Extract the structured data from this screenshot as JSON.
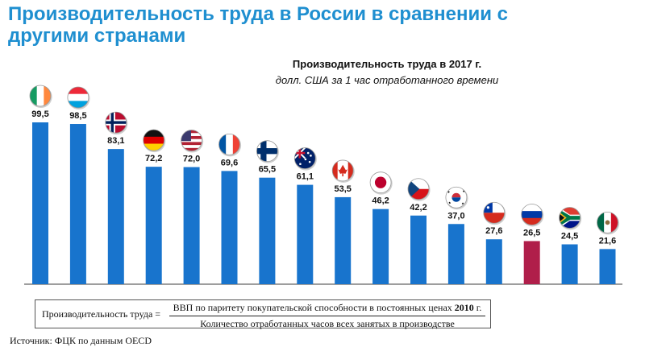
{
  "page": {
    "title": "Производительность труда в России в сравнении с другими странами",
    "source": "Источник: ФЦК по данным OECD"
  },
  "formula": {
    "lhs": "Производительность труда =",
    "numerator_text": "ВВП по паритету покупательской способности в постоянных ценах",
    "numerator_year": "2010",
    "numerator_suffix": " г.",
    "denominator": "Количество отработанных часов всех занятых в производстве"
  },
  "chart_data": {
    "type": "bar",
    "title": "Производительность труда в 2017 г.",
    "subtitle": "долл. США за 1 час отработанного времени",
    "xlabel": "",
    "ylabel": "",
    "ylim": [
      0,
      100
    ],
    "grid": false,
    "legend": "none",
    "categories": [
      "ireland-flag",
      "luxembourg-flag",
      "norway-flag",
      "germany-flag",
      "usa-flag",
      "france-flag",
      "finland-flag",
      "australia-flag",
      "canada-flag",
      "japan-flag",
      "czech-flag",
      "south-korea-flag",
      "chile-flag",
      "russia-flag",
      "south-africa-flag",
      "mexico-flag"
    ],
    "values": [
      99.5,
      98.5,
      83.1,
      72.2,
      72.0,
      69.6,
      65.5,
      61.1,
      53.5,
      46.2,
      42.2,
      37.0,
      27.6,
      26.5,
      24.5,
      21.6
    ],
    "value_labels": [
      "99,5",
      "98,5",
      "83,1",
      "72,2",
      "72,0",
      "69,6",
      "65,5",
      "61,1",
      "53,5",
      "46,2",
      "42,2",
      "37,0",
      "27,6",
      "26,5",
      "24,5",
      "21,6"
    ],
    "colors": {
      "default": "#1874cd",
      "highlight": "#b01e4a",
      "axis": "#7f7f7f"
    },
    "highlight_index": 13
  }
}
